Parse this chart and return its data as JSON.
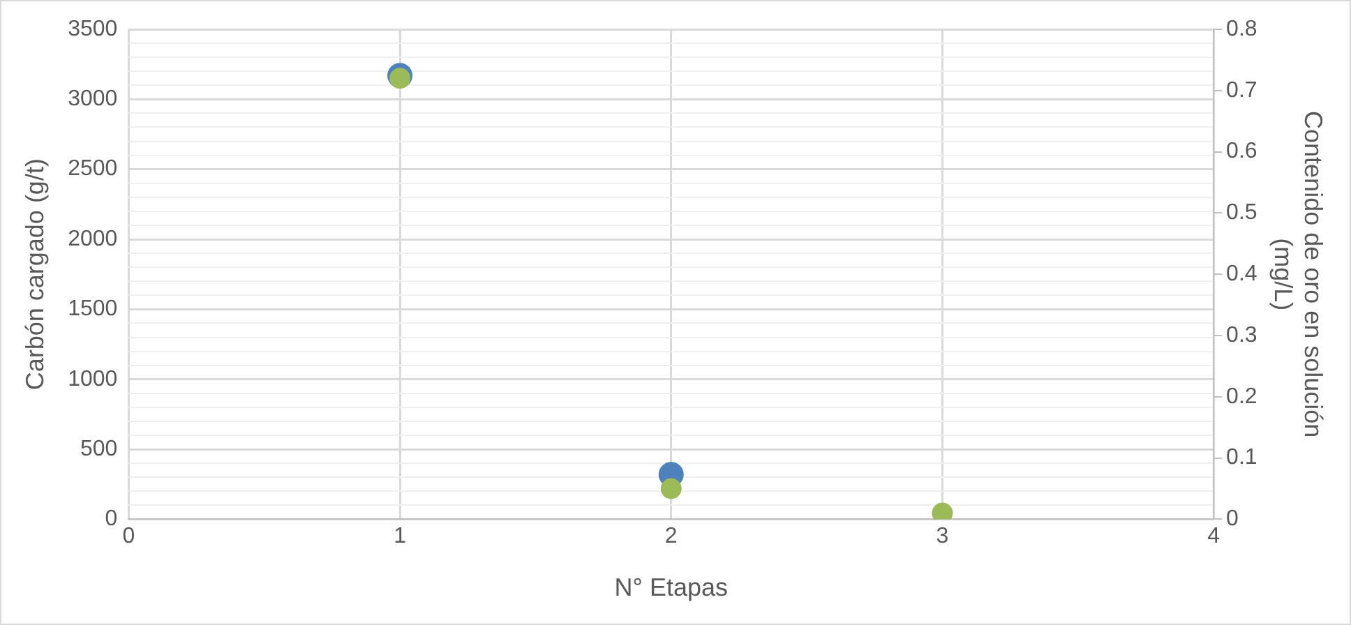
{
  "chart_data": {
    "type": "scatter",
    "xlabel": "N° Etapas",
    "ylabel": "Carbón cargado (g/t)",
    "y2label": "Contenido de oro en solución (mg/L)",
    "x": [
      1,
      2,
      3
    ],
    "series": [
      {
        "color": "#4f81bd",
        "values": [
          3170,
          320,
          null
        ]
      },
      {
        "color": "#9bbb59",
        "values": [
          0.72,
          0.05,
          0.01
        ],
        "axis": "y2"
      }
    ],
    "xlim": [
      0,
      4
    ],
    "xticks": [
      0,
      1,
      2,
      3,
      4
    ],
    "ylim": [
      0,
      3500
    ],
    "yticks": [
      0,
      {
        "value": 100,
        "label": null
      },
      {
        "value": 200,
        "label": null
      },
      {
        "value": 300,
        "label": null
      },
      {
        "value": 400,
        "label": null
      },
      500,
      {
        "value": 600,
        "label": null
      },
      {
        "value": 700,
        "label": null
      },
      {
        "value": 800,
        "label": null
      },
      {
        "value": 900,
        "label": null
      },
      1000,
      {
        "value": 1100,
        "label": null
      },
      {
        "value": 1200,
        "label": null
      },
      {
        "value": 1300,
        "label": null
      },
      {
        "value": 1400,
        "label": null
      },
      1500,
      {
        "value": 1600,
        "label": null
      },
      {
        "value": 1700,
        "label": null
      },
      {
        "value": 1800,
        "label": null
      },
      {
        "value": 1900,
        "label": null
      },
      2000,
      {
        "value": 2100,
        "label": null
      },
      {
        "value": 2200,
        "label": null
      },
      {
        "value": 2300,
        "label": null
      },
      {
        "value": 2400,
        "label": null
      },
      2500,
      {
        "value": 2600,
        "label": null
      },
      {
        "value": 2700,
        "label": null
      },
      {
        "value": 2800,
        "label": null
      },
      {
        "value": 2900,
        "label": null
      },
      3000,
      {
        "value": 3100,
        "label": null
      },
      {
        "value": 3200,
        "label": null
      },
      {
        "value": 3300,
        "label": null
      },
      {
        "value": 3400,
        "label": null
      },
      3500
    ],
    "y2lim": [
      0,
      0.8
    ],
    "y2ticks": [
      0,
      0.1,
      0.2,
      0.3,
      0.4,
      0.5,
      0.6,
      0.7,
      0.8
    ],
    "grid": true,
    "legend": false,
    "marker": "circle"
  }
}
